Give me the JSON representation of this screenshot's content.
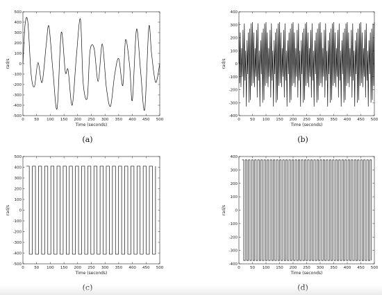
{
  "chart_data": [
    {
      "type": "line",
      "caption": "(a)",
      "xlabel": "Time (seconds)",
      "ylabel": "rad/s",
      "xlim": [
        0,
        500
      ],
      "ylim": [
        -500,
        500
      ],
      "xticks": [
        0,
        50,
        100,
        150,
        200,
        250,
        300,
        350,
        400,
        450,
        500
      ],
      "yticks": [
        -500,
        -400,
        -300,
        -200,
        -100,
        0,
        100,
        200,
        300,
        400,
        500
      ],
      "series": [
        {
          "style": "smooth",
          "x": [
            0,
            8,
            18,
            30,
            42,
            55,
            70,
            85,
            95,
            110,
            125,
            140,
            155,
            165,
            180,
            195,
            210,
            220,
            235,
            245,
            260,
            275,
            290,
            305,
            320,
            335,
            350,
            365,
            375,
            390,
            400,
            415,
            430,
            445,
            460,
            470,
            485,
            500
          ],
          "y": [
            0,
            380,
            400,
            -100,
            -220,
            10,
            -180,
            180,
            360,
            -80,
            -430,
            300,
            -80,
            -60,
            -400,
            60,
            430,
            -180,
            -330,
            120,
            150,
            -170,
            190,
            -230,
            -410,
            -110,
            50,
            -210,
            230,
            -20,
            -350,
            330,
            -70,
            -440,
            350,
            100,
            -180,
            0
          ]
        }
      ]
    },
    {
      "type": "line",
      "caption": "(b)",
      "xlabel": "Time (seconds)",
      "ylabel": "rad/s",
      "xlim": [
        0,
        500
      ],
      "ylim": [
        -400,
        400
      ],
      "xticks": [
        0,
        50,
        100,
        150,
        200,
        250,
        300,
        350,
        400,
        450,
        500
      ],
      "yticks": [
        -400,
        -300,
        -200,
        -100,
        0,
        100,
        200,
        300,
        400
      ],
      "series": [
        {
          "style": "dense",
          "x_start": 0,
          "x_step": 2.5,
          "peak_levels": [
            320,
            280,
            240,
            200,
            120,
            300,
            260,
            160,
            310,
            220,
            100,
            290,
            180,
            330,
            240,
            140,
            270,
            200,
            310,
            110
          ],
          "trough_levels": [
            -320,
            -260,
            -200,
            -150,
            -90,
            -300,
            -230,
            -130,
            -310,
            -180,
            -60,
            -280,
            -140,
            -330,
            -210,
            -100,
            -260,
            -170,
            -300,
            -80
          ]
        }
      ]
    },
    {
      "type": "line",
      "caption": "(c)",
      "xlabel": "Time (seconds)",
      "ylabel": "rad/s",
      "xlim": [
        0,
        500
      ],
      "ylim": [
        -500,
        500
      ],
      "xticks": [
        0,
        50,
        100,
        150,
        200,
        250,
        300,
        350,
        400,
        450,
        500
      ],
      "yticks": [
        -500,
        -400,
        -300,
        -200,
        -100,
        0,
        100,
        200,
        300,
        400,
        500
      ],
      "series": [
        {
          "style": "square",
          "high": 410,
          "low": -410,
          "x_start": 12,
          "x_end": 490,
          "period": 22.5
        }
      ]
    },
    {
      "type": "line",
      "caption": "(d)",
      "xlabel": "Time (seconds)",
      "ylabel": "rad/s",
      "xlim": [
        0,
        500
      ],
      "ylim": [
        -400,
        400
      ],
      "xticks": [
        0,
        50,
        100,
        150,
        200,
        250,
        300,
        350,
        400,
        450,
        500
      ],
      "yticks": [
        -400,
        -300,
        -200,
        -100,
        0,
        100,
        200,
        300,
        400
      ],
      "series": [
        {
          "style": "square",
          "high": 375,
          "low": -375,
          "x_start": 12,
          "x_end": 490,
          "period": 11.5
        }
      ]
    }
  ]
}
